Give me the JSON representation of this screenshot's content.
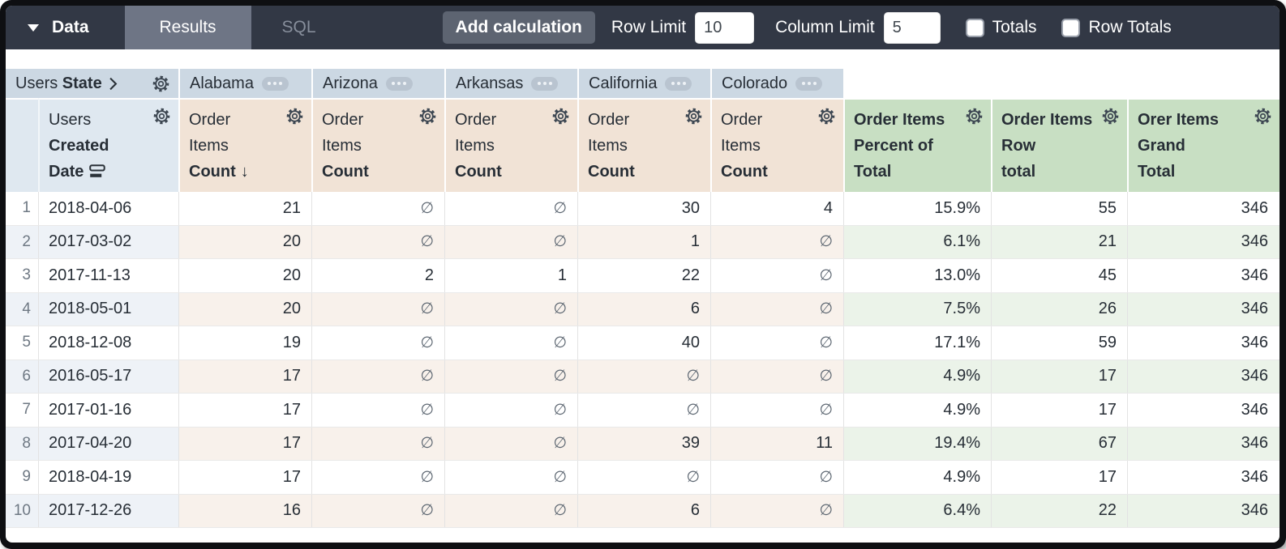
{
  "toolbar": {
    "menu_label": "Data",
    "tabs": [
      {
        "label": "Results"
      },
      {
        "label": "SQL"
      }
    ],
    "add_calculation_label": "Add calculation",
    "row_limit_label": "Row Limit",
    "row_limit_value": "10",
    "column_limit_label": "Column Limit",
    "column_limit_value": "5",
    "totals_label": "Totals",
    "row_totals_label": "Row Totals",
    "totals_checked": false,
    "row_totals_checked": false
  },
  "pivot": {
    "dimension_view": "Users",
    "dimension_field": "State",
    "values": [
      "Alabama",
      "Arizona",
      "Arkansas",
      "California",
      "Colorado"
    ]
  },
  "row_dimension": {
    "lines": [
      "Users",
      "Created",
      "Date"
    ]
  },
  "measures": [
    {
      "lines": [
        "Order",
        "Items",
        "Count"
      ],
      "sort_indicator": "↓"
    },
    {
      "lines": [
        "Order",
        "Items",
        "Count"
      ]
    },
    {
      "lines": [
        "Order",
        "Items",
        "Count"
      ]
    },
    {
      "lines": [
        "Order",
        "Items",
        "Count"
      ]
    },
    {
      "lines": [
        "Order",
        "Items",
        "Count"
      ]
    }
  ],
  "calculations": [
    {
      "lines": [
        "Order Items",
        "Percent of",
        "Total"
      ]
    },
    {
      "lines": [
        "Order Items",
        "Row",
        "total"
      ]
    },
    {
      "lines": [
        "Orer Items",
        "Grand",
        "Total"
      ]
    }
  ],
  "null_symbol": "∅",
  "rows": [
    {
      "index": "1",
      "date": "2018-04-06",
      "values": [
        "21",
        "∅",
        "∅",
        "30",
        "4"
      ],
      "percent_of_total": "15.9%",
      "row_total": "55",
      "grand_total": "346"
    },
    {
      "index": "2",
      "date": "2017-03-02",
      "values": [
        "20",
        "∅",
        "∅",
        "1",
        "∅"
      ],
      "percent_of_total": "6.1%",
      "row_total": "21",
      "grand_total": "346"
    },
    {
      "index": "3",
      "date": "2017-11-13",
      "values": [
        "20",
        "2",
        "1",
        "22",
        "∅"
      ],
      "percent_of_total": "13.0%",
      "row_total": "45",
      "grand_total": "346"
    },
    {
      "index": "4",
      "date": "2018-05-01",
      "values": [
        "20",
        "∅",
        "∅",
        "6",
        "∅"
      ],
      "percent_of_total": "7.5%",
      "row_total": "26",
      "grand_total": "346"
    },
    {
      "index": "5",
      "date": "2018-12-08",
      "values": [
        "19",
        "∅",
        "∅",
        "40",
        "∅"
      ],
      "percent_of_total": "17.1%",
      "row_total": "59",
      "grand_total": "346"
    },
    {
      "index": "6",
      "date": "2016-05-17",
      "values": [
        "17",
        "∅",
        "∅",
        "∅",
        "∅"
      ],
      "percent_of_total": "4.9%",
      "row_total": "17",
      "grand_total": "346"
    },
    {
      "index": "7",
      "date": "2017-01-16",
      "values": [
        "17",
        "∅",
        "∅",
        "∅",
        "∅"
      ],
      "percent_of_total": "4.9%",
      "row_total": "17",
      "grand_total": "346"
    },
    {
      "index": "8",
      "date": "2017-04-20",
      "values": [
        "17",
        "∅",
        "∅",
        "39",
        "11"
      ],
      "percent_of_total": "19.4%",
      "row_total": "67",
      "grand_total": "346"
    },
    {
      "index": "9",
      "date": "2018-04-19",
      "values": [
        "17",
        "∅",
        "∅",
        "∅",
        "∅"
      ],
      "percent_of_total": "4.9%",
      "row_total": "17",
      "grand_total": "346"
    },
    {
      "index": "10",
      "date": "2017-12-26",
      "values": [
        "16",
        "∅",
        "∅",
        "6",
        "∅"
      ],
      "percent_of_total": "6.4%",
      "row_total": "22",
      "grand_total": "346"
    }
  ],
  "colors": {
    "toolbar_bg": "#323845",
    "tab_active_bg": "#6e7585",
    "button_bg": "#5d6471",
    "pivot_header_bg": "#ccd8e3",
    "dimension_header_bg": "#dfe8f0",
    "measure_header_bg": "#f1e3d6",
    "calc_header_bg": "#c8dfc3",
    "stripe_dimension": "#eef2f7",
    "stripe_measure": "#f8f1eb",
    "stripe_calc": "#ebf3e9"
  }
}
